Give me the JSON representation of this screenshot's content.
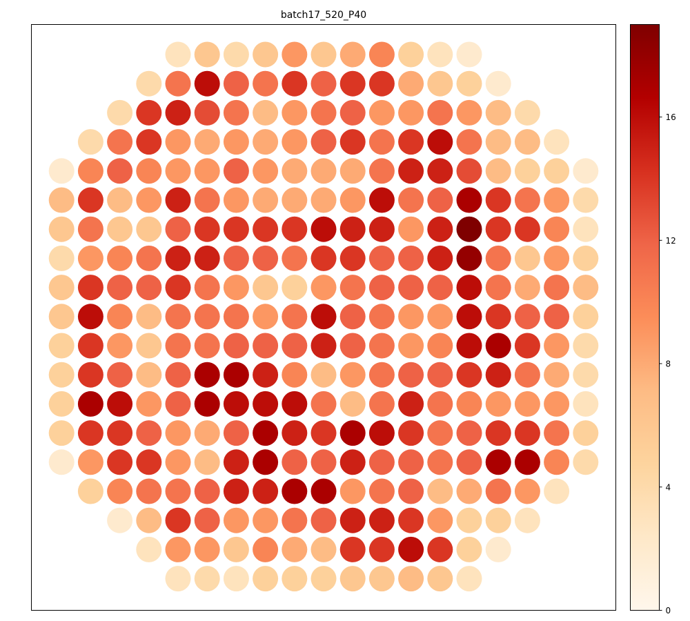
{
  "chart_data": {
    "type": "heatmap",
    "title": "batch17_520_P40",
    "colormap": "OrRd",
    "colorbar": {
      "min": 0,
      "max": 19,
      "ticks": [
        0,
        4,
        8,
        12,
        16
      ],
      "tick_labels": [
        "0",
        "4",
        "8",
        "12",
        "16"
      ]
    },
    "layout": "hexagonal grid of circular sites, 19 rows, centered rows of varying length",
    "rows": [
      [
        3,
        6,
        4,
        6,
        9,
        6,
        8,
        10,
        5,
        3,
        2
      ],
      [
        4,
        11,
        16,
        12,
        11,
        14,
        12,
        14,
        14,
        8,
        6,
        5,
        2
      ],
      [
        4,
        14,
        15,
        13,
        11,
        7,
        9,
        11,
        12,
        9,
        9,
        11,
        9,
        7,
        4
      ],
      [
        4,
        11,
        14,
        9,
        8,
        9,
        8,
        9,
        12,
        14,
        11,
        14,
        16,
        11,
        7,
        7,
        3
      ],
      [
        2,
        10,
        12,
        10,
        9,
        9,
        12,
        9,
        8,
        8,
        8,
        11,
        15,
        15,
        13,
        7,
        5,
        5,
        2
      ],
      [
        7,
        14,
        7,
        9,
        15,
        11,
        9,
        8,
        8,
        8,
        9,
        16,
        11,
        12,
        17,
        14,
        11,
        9,
        4
      ],
      [
        6,
        11,
        6,
        6,
        12,
        14,
        14,
        14,
        14,
        16,
        15,
        15,
        9,
        15,
        19,
        14,
        14,
        10,
        3
      ],
      [
        4,
        9,
        10,
        11,
        15,
        15,
        12,
        12,
        11,
        14,
        14,
        12,
        12,
        15,
        18,
        11,
        6,
        9,
        5
      ],
      [
        6,
        14,
        12,
        12,
        14,
        11,
        9,
        6,
        5,
        9,
        11,
        12,
        12,
        12,
        16,
        11,
        8,
        11,
        7
      ],
      [
        6,
        16,
        10,
        7,
        11,
        11,
        11,
        9,
        11,
        16,
        12,
        11,
        9,
        9,
        16,
        14,
        12,
        12,
        5
      ],
      [
        5,
        14,
        9,
        6,
        11,
        11,
        12,
        12,
        12,
        15,
        12,
        11,
        9,
        10,
        16,
        17,
        14,
        9,
        4
      ],
      [
        5,
        14,
        12,
        7,
        12,
        17,
        17,
        15,
        10,
        7,
        9,
        11,
        12,
        12,
        14,
        15,
        11,
        8,
        4
      ],
      [
        5,
        17,
        16,
        9,
        12,
        17,
        16,
        16,
        16,
        11,
        7,
        11,
        15,
        11,
        10,
        9,
        9,
        9,
        3
      ],
      [
        5,
        14,
        14,
        12,
        9,
        8,
        12,
        17,
        15,
        14,
        17,
        16,
        14,
        11,
        12,
        14,
        14,
        11,
        5
      ],
      [
        2,
        9,
        14,
        14,
        9,
        7,
        15,
        17,
        12,
        12,
        15,
        12,
        12,
        11,
        12,
        17,
        17,
        10,
        4
      ],
      [
        5,
        10,
        11,
        11,
        12,
        15,
        15,
        17,
        17,
        9,
        11,
        12,
        7,
        8,
        11,
        9,
        3
      ],
      [
        2,
        7,
        14,
        12,
        9,
        9,
        11,
        12,
        15,
        15,
        14,
        9,
        5,
        5,
        3
      ],
      [
        3,
        9,
        9,
        6,
        10,
        8,
        7,
        14,
        14,
        16,
        14,
        5,
        2
      ],
      [
        3,
        4,
        3,
        5,
        5,
        5,
        6,
        6,
        7,
        6,
        3
      ]
    ]
  }
}
